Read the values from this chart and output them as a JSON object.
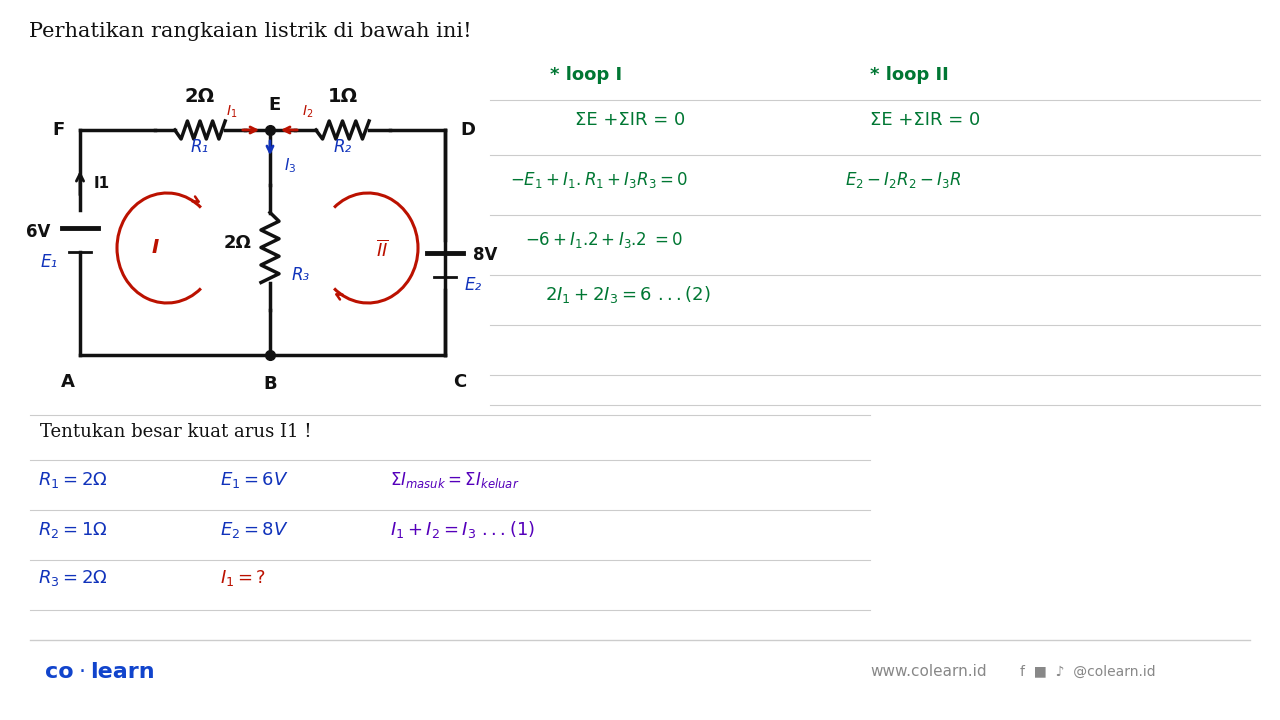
{
  "title": "Perhatikan rangkaian listrik di bawah ini!",
  "bg_color": "#ffffff",
  "colors": {
    "black": "#111111",
    "dark_red": "#bb1100",
    "blue": "#1133bb",
    "green": "#007733",
    "colearn_blue": "#1144cc",
    "purple": "#5500bb",
    "gray_line": "#cccccc",
    "gray_text": "#888888"
  },
  "circuit": {
    "node_F": "F",
    "node_E": "E",
    "node_D": "D",
    "node_A": "A",
    "node_B": "B",
    "node_C": "C",
    "R1_label": "R₁",
    "R2_label": "R₂",
    "R3_label": "R₃",
    "res_2ohm": "2Ω",
    "res_1ohm": "1Ω",
    "res_r3": "2Ω",
    "batt_6V": "6V",
    "batt_8V": "8V",
    "E1_label": "E₁",
    "E2_label": "E₂",
    "I1_label": "I₁",
    "I2_label": "I₂",
    "I3_label": "I₃",
    "I1_wire": "I1",
    "loop1": "I",
    "loop2": "II"
  },
  "eqs": {
    "h1": "* loop I",
    "h2": "* loop II",
    "e1a": "ΣE +ΣIR = 0",
    "e1b": "ΣE +ΣIR = 0",
    "e2a": "-E₁+I₁.R₁+I₃ R₃ = 0",
    "e2b": "E₂-I₂R₂-I₃R",
    "e3a": "-6 + I₁.2+I₃.2 = 0",
    "e4a": "2I₁ + 2I₃ = 6 ...(2)"
  },
  "bottom": {
    "subtitle": "Tentukan besar kuat arus I1 !",
    "r1": "R₁ = 2Ω",
    "e1": "E₁ = 6V",
    "r2": "R₂ = 1Ω",
    "e2": "E₂ = 8V",
    "r3": "R₃ = 2Ω",
    "i1q": "I₁ = ?",
    "kcl1": "ΣIₘₐₛᵘₖ = ΣIₖᵉₗᵘₐʳ",
    "kcl2": "I₁+I₂ = I₃ ...(1)"
  },
  "footer": {
    "colearn": "co·learn",
    "website": "www.colearn.id",
    "social": "      @colearn.id"
  }
}
